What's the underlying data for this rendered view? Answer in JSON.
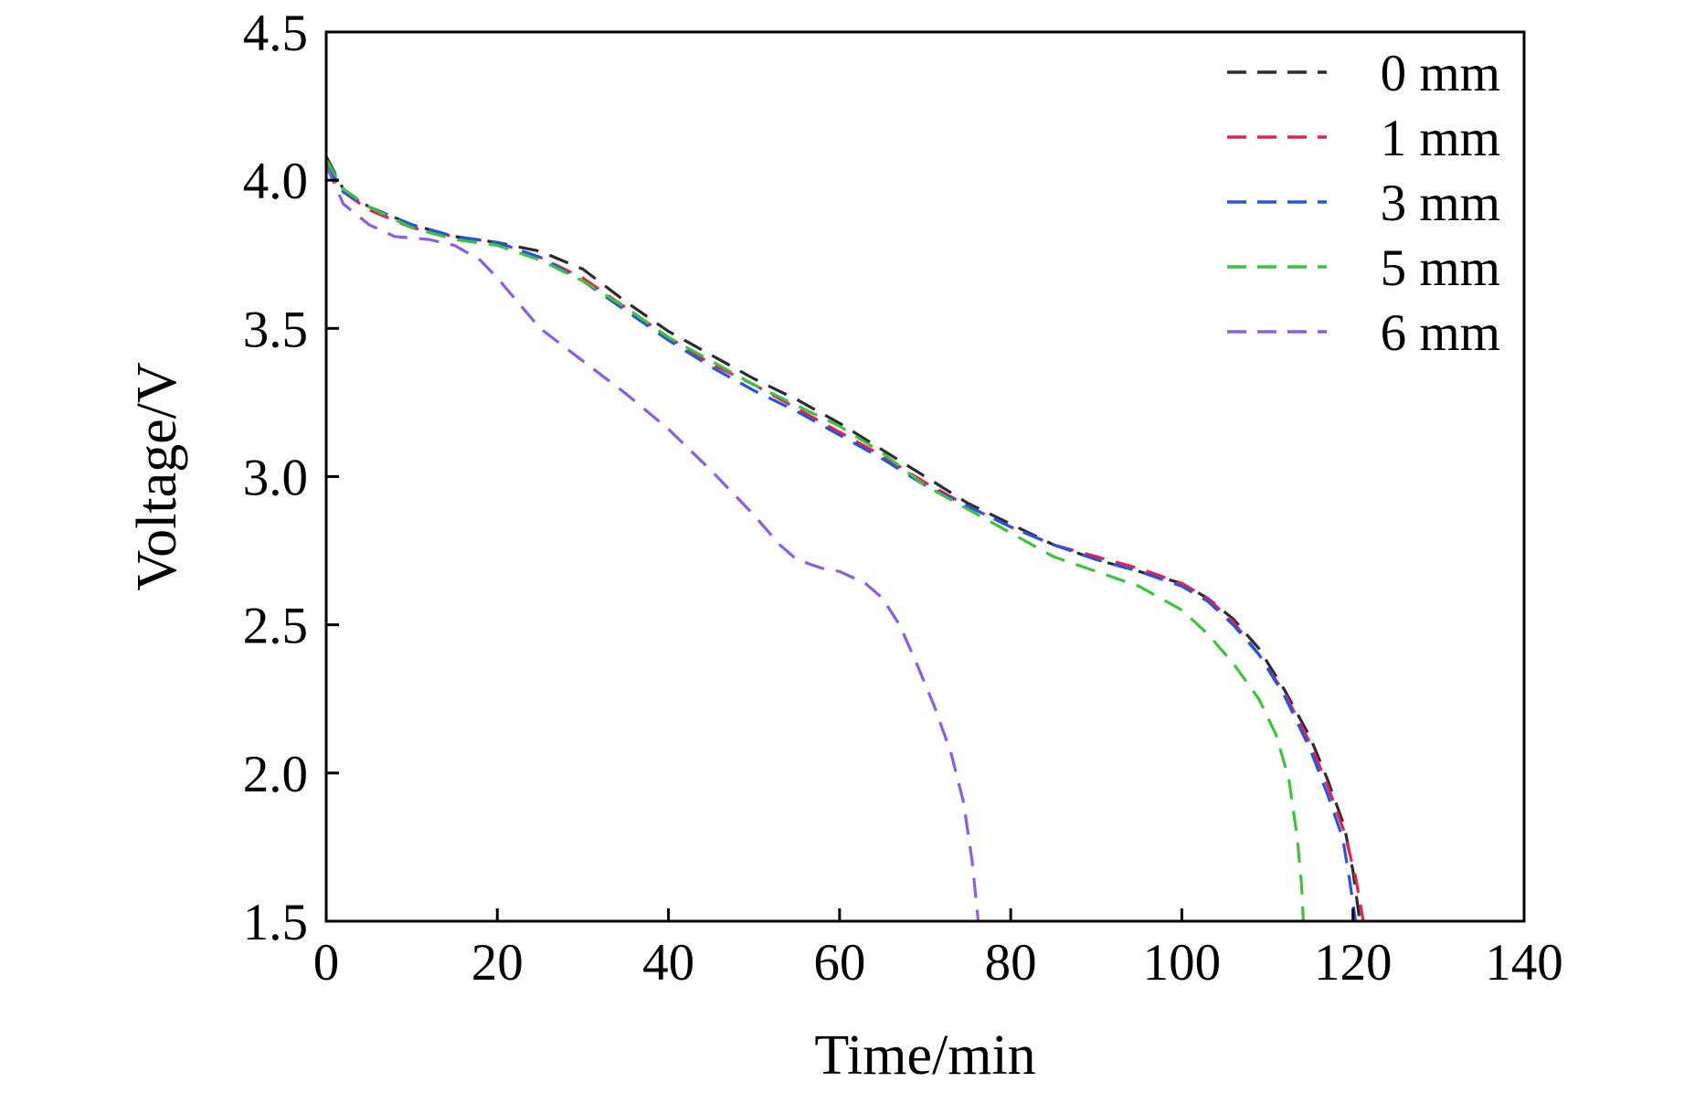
{
  "chart_data": {
    "type": "line",
    "title": "",
    "xlabel": "Time/min",
    "ylabel": "Voltage/V",
    "xlim": [
      0,
      140
    ],
    "ylim": [
      1.5,
      4.5
    ],
    "xticks": [
      0,
      20,
      40,
      60,
      80,
      100,
      120,
      140
    ],
    "yticks": [
      1.5,
      2.0,
      2.5,
      3.0,
      3.5,
      4.0,
      4.5
    ],
    "xtick_labels": [
      "0",
      "20",
      "40",
      "60",
      "80",
      "100",
      "120",
      "140"
    ],
    "ytick_labels": [
      "1.5",
      "2.0",
      "2.5",
      "3.0",
      "3.5",
      "4.0",
      "4.5"
    ],
    "grid": false,
    "legend_position": "top-right",
    "line_style": "dashed",
    "series": [
      {
        "name": "0 mm",
        "color": "#2b2b33",
        "points": [
          [
            0,
            4.08
          ],
          [
            2,
            3.97
          ],
          [
            5,
            3.91
          ],
          [
            10,
            3.85
          ],
          [
            15,
            3.81
          ],
          [
            20,
            3.79
          ],
          [
            25,
            3.76
          ],
          [
            30,
            3.7
          ],
          [
            35,
            3.59
          ],
          [
            40,
            3.49
          ],
          [
            45,
            3.41
          ],
          [
            50,
            3.33
          ],
          [
            55,
            3.26
          ],
          [
            60,
            3.18
          ],
          [
            65,
            3.09
          ],
          [
            70,
            3.0
          ],
          [
            75,
            2.91
          ],
          [
            80,
            2.84
          ],
          [
            85,
            2.77
          ],
          [
            90,
            2.72
          ],
          [
            95,
            2.68
          ],
          [
            100,
            2.64
          ],
          [
            103,
            2.59
          ],
          [
            106,
            2.52
          ],
          [
            109,
            2.42
          ],
          [
            112,
            2.28
          ],
          [
            115,
            2.12
          ],
          [
            117,
            1.98
          ],
          [
            119,
            1.82
          ],
          [
            120,
            1.67
          ],
          [
            120.8,
            1.5
          ]
        ]
      },
      {
        "name": "1 mm",
        "color": "#e8214a",
        "points": [
          [
            0,
            4.05
          ],
          [
            2,
            3.96
          ],
          [
            5,
            3.9
          ],
          [
            10,
            3.84
          ],
          [
            15,
            3.81
          ],
          [
            20,
            3.79
          ],
          [
            25,
            3.74
          ],
          [
            30,
            3.67
          ],
          [
            35,
            3.57
          ],
          [
            40,
            3.47
          ],
          [
            45,
            3.38
          ],
          [
            50,
            3.31
          ],
          [
            55,
            3.23
          ],
          [
            60,
            3.15
          ],
          [
            65,
            3.07
          ],
          [
            70,
            2.98
          ],
          [
            75,
            2.9
          ],
          [
            80,
            2.83
          ],
          [
            85,
            2.77
          ],
          [
            90,
            2.73
          ],
          [
            95,
            2.69
          ],
          [
            100,
            2.64
          ],
          [
            103,
            2.59
          ],
          [
            106,
            2.51
          ],
          [
            109,
            2.4
          ],
          [
            112,
            2.27
          ],
          [
            115,
            2.1
          ],
          [
            117,
            1.96
          ],
          [
            119,
            1.8
          ],
          [
            120.3,
            1.65
          ],
          [
            121.2,
            1.5
          ]
        ]
      },
      {
        "name": "3 mm",
        "color": "#2356e0",
        "points": [
          [
            0,
            4.06
          ],
          [
            2,
            3.96
          ],
          [
            5,
            3.91
          ],
          [
            10,
            3.85
          ],
          [
            15,
            3.81
          ],
          [
            20,
            3.79
          ],
          [
            25,
            3.74
          ],
          [
            30,
            3.66
          ],
          [
            35,
            3.56
          ],
          [
            40,
            3.46
          ],
          [
            45,
            3.37
          ],
          [
            50,
            3.29
          ],
          [
            55,
            3.22
          ],
          [
            60,
            3.14
          ],
          [
            65,
            3.06
          ],
          [
            70,
            2.97
          ],
          [
            75,
            2.9
          ],
          [
            80,
            2.83
          ],
          [
            85,
            2.77
          ],
          [
            90,
            2.72
          ],
          [
            95,
            2.68
          ],
          [
            100,
            2.63
          ],
          [
            103,
            2.58
          ],
          [
            106,
            2.5
          ],
          [
            109,
            2.4
          ],
          [
            112,
            2.26
          ],
          [
            115,
            2.08
          ],
          [
            117,
            1.93
          ],
          [
            118.8,
            1.78
          ],
          [
            119.6,
            1.64
          ],
          [
            120.3,
            1.5
          ]
        ]
      },
      {
        "name": "5 mm",
        "color": "#3ec23e",
        "points": [
          [
            0,
            4.07
          ],
          [
            2,
            3.97
          ],
          [
            5,
            3.91
          ],
          [
            10,
            3.84
          ],
          [
            15,
            3.8
          ],
          [
            20,
            3.78
          ],
          [
            25,
            3.73
          ],
          [
            30,
            3.66
          ],
          [
            35,
            3.57
          ],
          [
            40,
            3.47
          ],
          [
            45,
            3.39
          ],
          [
            50,
            3.31
          ],
          [
            55,
            3.24
          ],
          [
            60,
            3.17
          ],
          [
            65,
            3.08
          ],
          [
            70,
            2.97
          ],
          [
            75,
            2.89
          ],
          [
            80,
            2.81
          ],
          [
            85,
            2.73
          ],
          [
            90,
            2.68
          ],
          [
            95,
            2.63
          ],
          [
            100,
            2.55
          ],
          [
            103,
            2.47
          ],
          [
            106,
            2.37
          ],
          [
            109,
            2.25
          ],
          [
            111,
            2.13
          ],
          [
            112.5,
            1.98
          ],
          [
            113.5,
            1.78
          ],
          [
            114,
            1.62
          ],
          [
            114.2,
            1.5
          ]
        ]
      },
      {
        "name": "6 mm",
        "color": "#8a5ce8",
        "points": [
          [
            0,
            4.05
          ],
          [
            2,
            3.92
          ],
          [
            5,
            3.85
          ],
          [
            8,
            3.81
          ],
          [
            12,
            3.8
          ],
          [
            15,
            3.78
          ],
          [
            18,
            3.73
          ],
          [
            20,
            3.67
          ],
          [
            25,
            3.5
          ],
          [
            30,
            3.39
          ],
          [
            35,
            3.28
          ],
          [
            40,
            3.16
          ],
          [
            45,
            3.02
          ],
          [
            50,
            2.87
          ],
          [
            53,
            2.77
          ],
          [
            55,
            2.72
          ],
          [
            58,
            2.69
          ],
          [
            60,
            2.68
          ],
          [
            63,
            2.64
          ],
          [
            65,
            2.59
          ],
          [
            67,
            2.5
          ],
          [
            69,
            2.37
          ],
          [
            71,
            2.23
          ],
          [
            73,
            2.07
          ],
          [
            74.5,
            1.9
          ],
          [
            75.5,
            1.7
          ],
          [
            76.2,
            1.5
          ]
        ]
      }
    ]
  }
}
